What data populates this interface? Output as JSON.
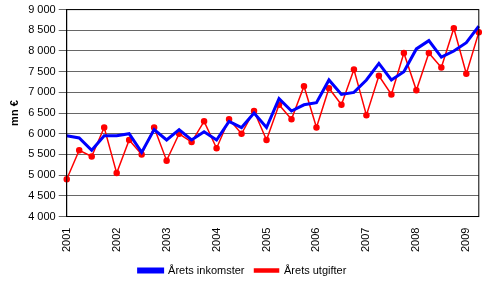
{
  "chart_data": {
    "type": "line",
    "y_label": "mn €",
    "categories": [
      "2001",
      null,
      null,
      null,
      "2002",
      null,
      null,
      null,
      "2003",
      null,
      null,
      null,
      "2004",
      null,
      null,
      null,
      "2005",
      null,
      null,
      null,
      "2006",
      null,
      null,
      null,
      "2007",
      null,
      null,
      null,
      "2008",
      null,
      null,
      null,
      "2009",
      null
    ],
    "series": [
      {
        "name": "Årets inkomster",
        "color": "#0000ff",
        "marker": "none",
        "line_style": "solid",
        "values": [
          5950,
          5900,
          5600,
          5950,
          5950,
          6000,
          5550,
          6100,
          5850,
          6100,
          5850,
          6050,
          5850,
          6300,
          6150,
          6500,
          6150,
          6850,
          6550,
          6700,
          6750,
          7300,
          6950,
          7000,
          7300,
          7700,
          7300,
          7500,
          8050,
          8250,
          7850,
          8000,
          8200,
          8600
        ]
      },
      {
        "name": "Årets utgifter",
        "color": "#ff0000",
        "marker": "circle",
        "line_style": "solid",
        "values": [
          4900,
          5600,
          5450,
          6150,
          5050,
          5850,
          5500,
          6150,
          5350,
          6000,
          5800,
          6300,
          5650,
          6350,
          6000,
          6550,
          5850,
          6700,
          6350,
          7150,
          6150,
          7100,
          6700,
          7550,
          6450,
          7400,
          6950,
          7950,
          7050,
          7950,
          7600,
          8550,
          7450,
          8450
        ]
      }
    ],
    "ylim": [
      4000,
      9000
    ],
    "yticks": [
      {
        "value": 4000,
        "label": "4 000"
      },
      {
        "value": 4500,
        "label": "4 500"
      },
      {
        "value": 5000,
        "label": "5 000"
      },
      {
        "value": 5500,
        "label": "5 500"
      },
      {
        "value": 6000,
        "label": "6 000"
      },
      {
        "value": 6500,
        "label": "6 500"
      },
      {
        "value": 7000,
        "label": "7 000"
      },
      {
        "value": 7500,
        "label": "7 500"
      },
      {
        "value": 8000,
        "label": "8 000"
      },
      {
        "value": 8500,
        "label": "8 500"
      },
      {
        "value": 9000,
        "label": "9 000"
      }
    ],
    "grid": true,
    "legend": "bottom"
  }
}
